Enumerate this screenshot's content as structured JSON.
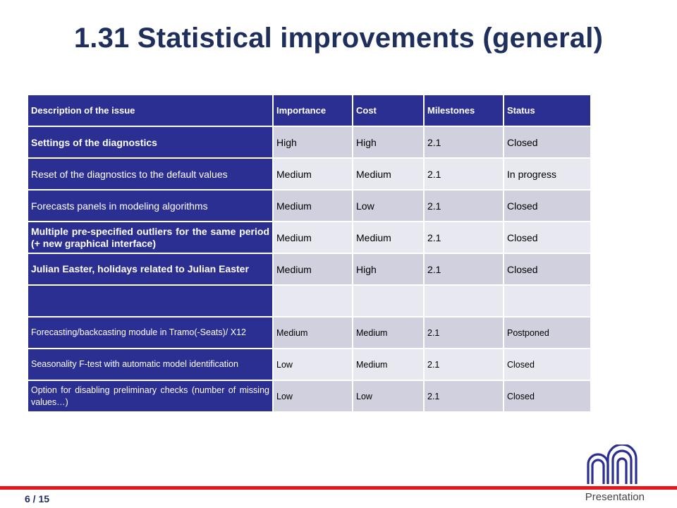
{
  "title": "1.31 Statistical improvements (general)",
  "table": {
    "headers": [
      "Description of the issue",
      "Importance",
      "Cost",
      "Milestones",
      "Status"
    ],
    "rows": [
      {
        "description": "Settings of the diagnostics",
        "importance": "High",
        "cost": "High",
        "milestone": "2.1",
        "status": "Closed"
      },
      {
        "description": "Reset of the diagnostics to the default values",
        "importance": "Medium",
        "cost": "Medium",
        "milestone": "2.1",
        "status": "In progress"
      },
      {
        "description": "Forecasts panels in modeling algorithms",
        "importance": "Medium",
        "cost": "Low",
        "milestone": "2.1",
        "status": "Closed"
      },
      {
        "description": "Multiple pre-specified outliers for the same period (+ new graphical interface)",
        "importance": "Medium",
        "cost": "Medium",
        "milestone": "2.1",
        "status": "Closed"
      },
      {
        "description": "Julian Easter, holidays related to Julian Easter",
        "importance": "Medium",
        "cost": "High",
        "milestone": "2.1",
        "status": "Closed"
      },
      {
        "description": "",
        "importance": "",
        "cost": "",
        "milestone": "",
        "status": ""
      },
      {
        "description": "Forecasting/backcasting module in Tramo(-Seats)/ X12",
        "importance": "Medium",
        "cost": "Medium",
        "milestone": "2.1",
        "status": "Postponed"
      },
      {
        "description": "Seasonality F-test with automatic model identification",
        "importance": "Low",
        "cost": "Medium",
        "milestone": "2.1",
        "status": "Closed"
      },
      {
        "description": "Option for disabling preliminary checks (number of missing values…)",
        "importance": "Low",
        "cost": "Low",
        "milestone": "2.1",
        "status": "Closed"
      }
    ]
  },
  "footer": {
    "page": "6 / 15",
    "label": "Presentation"
  },
  "colors": {
    "header_bg": "#2b2f92",
    "row_dark": "#d0d0de",
    "row_light": "#e8e8f0",
    "title": "#1f2f5c",
    "footer_line": "#e8161b"
  }
}
